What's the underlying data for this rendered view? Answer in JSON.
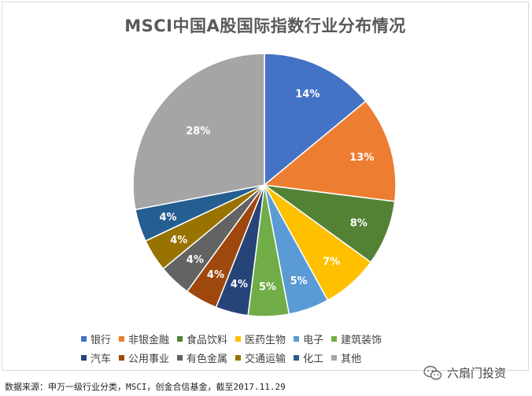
{
  "chart_data": {
    "type": "pie",
    "title": "MSCI中国A股国际指数行业分布情况",
    "labels": [
      "银行",
      "非银金融",
      "食品饮料",
      "医药生物",
      "电子",
      "建筑装饰",
      "汽车",
      "公用事业",
      "有色金属",
      "交通运输",
      "化工",
      "其他"
    ],
    "values": [
      14,
      13,
      8,
      7,
      5,
      5,
      4,
      4,
      4,
      4,
      4,
      28
    ],
    "data_labels": [
      "14%",
      "13%",
      "8%",
      "7%",
      "5%",
      "5%",
      "4%",
      "4%",
      "4%",
      "4%",
      "4%",
      "28%"
    ],
    "colors": [
      "#4472C4",
      "#ED7D31",
      "#548235",
      "#FFC000",
      "#5B9BD5",
      "#70AD47",
      "#264478",
      "#9E480E",
      "#636363",
      "#997300",
      "#255E91",
      "#A5A5A5"
    ],
    "legend_placement": "bottom"
  },
  "legend_rows": [
    [
      0,
      1,
      2,
      3,
      4,
      5
    ],
    [
      6,
      7,
      8,
      9,
      10,
      11
    ]
  ],
  "source_text": "数据来源：申万一级行业分类，MSCI，创金合信基金，截至2017.11.29",
  "watermark": "六扇门投资"
}
